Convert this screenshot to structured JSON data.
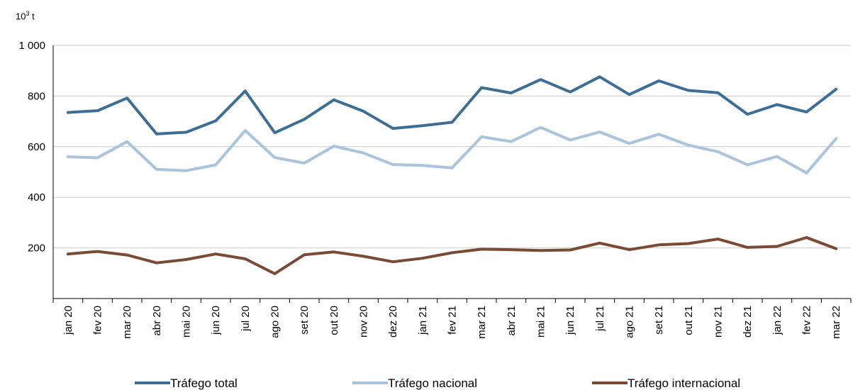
{
  "chart_data": {
    "type": "line",
    "unit_base": "10",
    "unit_exp": "3",
    "unit_suffix": " t",
    "ylim": [
      0,
      1000
    ],
    "yticks": [
      200,
      400,
      600,
      800,
      1000
    ],
    "ytick_labels": [
      "200",
      "400",
      "600",
      "800",
      "1 000"
    ],
    "grid": true,
    "legend_position": "bottom",
    "categories": [
      "jan 20",
      "fev 20",
      "mar 20",
      "abr 20",
      "mai 20",
      "jun 20",
      "jul 20",
      "ago 20",
      "set 20",
      "out 20",
      "nov 20",
      "dez 20",
      "jan 21",
      "fev 21",
      "mar 21",
      "abr 21",
      "mai 21",
      "jun 21",
      "jul 21",
      "ago 21",
      "set 21",
      "out 21",
      "nov 21",
      "dez 21",
      "jan 22",
      "fev 22",
      "mar 22"
    ],
    "series": [
      {
        "name": "Tráfego total",
        "color": "#3d6e96",
        "values": [
          735,
          742,
          792,
          650,
          657,
          702,
          820,
          655,
          708,
          785,
          740,
          672,
          683,
          696,
          833,
          812,
          865,
          816,
          876,
          806,
          860,
          822,
          813,
          728,
          766,
          737,
          827
        ]
      },
      {
        "name": "Tráfego nacional",
        "color": "#a9c4dc",
        "values": [
          560,
          556,
          620,
          510,
          505,
          528,
          664,
          557,
          535,
          602,
          575,
          529,
          526,
          516,
          639,
          620,
          676,
          626,
          658,
          613,
          649,
          606,
          580,
          528,
          561,
          496,
          632
        ]
      },
      {
        "name": "Tráfego internacional",
        "color": "#7b4a35",
        "values": [
          176,
          186,
          172,
          141,
          154,
          176,
          157,
          98,
          173,
          184,
          167,
          145,
          159,
          181,
          195,
          193,
          190,
          192,
          219,
          193,
          212,
          217,
          235,
          202,
          206,
          241,
          197
        ]
      }
    ]
  }
}
